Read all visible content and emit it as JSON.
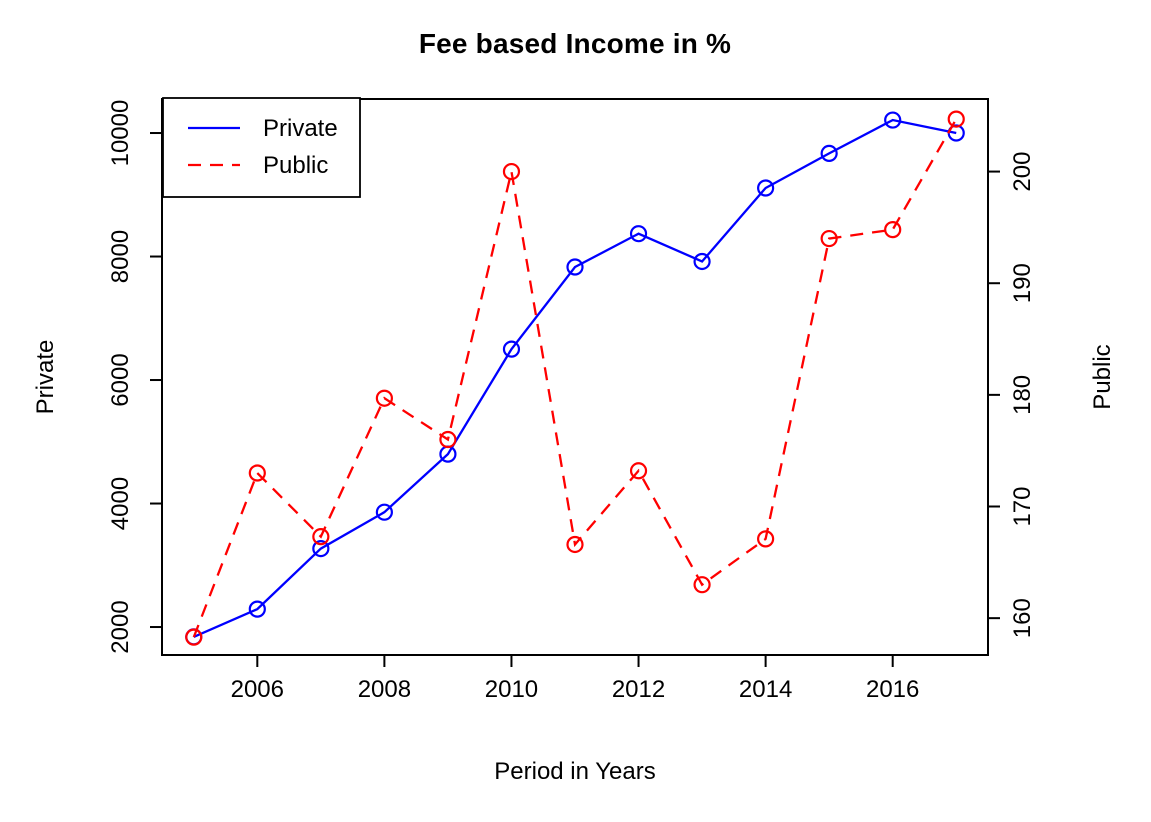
{
  "page": {
    "background": "#ffffff"
  },
  "chart": {
    "title": "Fee based Income in %",
    "xlabel": "Period in Years",
    "ylabel_left": "Private",
    "ylabel_right": "Public"
  },
  "legend": {
    "position": "topleft",
    "items": [
      {
        "label": "Private",
        "color": "#0000ff",
        "style": "solid"
      },
      {
        "label": "Public",
        "color": "#ff0000",
        "style": "dashed"
      }
    ]
  },
  "chart_data": {
    "type": "line",
    "title": "Fee based Income in %",
    "xlabel": "Period in Years",
    "ylabel_left": "Private",
    "ylabel_right": "Public",
    "x": [
      2005,
      2006,
      2007,
      2008,
      2009,
      2010,
      2011,
      2012,
      2013,
      2014,
      2015,
      2016,
      2017
    ],
    "series": [
      {
        "name": "Private",
        "axis": "left",
        "color": "#0000ff",
        "line_style": "solid",
        "marker": "open-circle",
        "values": [
          1840,
          2290,
          3270,
          3860,
          4800,
          6500,
          7830,
          8370,
          7920,
          9110,
          9670,
          10210,
          10000
        ]
      },
      {
        "name": "Public",
        "axis": "right",
        "color": "#ff0000",
        "line_style": "dashed",
        "marker": "open-circle",
        "values": [
          158.3,
          173,
          167.3,
          179.7,
          176,
          200,
          166.6,
          173.2,
          163,
          167.1,
          194,
          194.8,
          204.7
        ]
      }
    ],
    "x_ticks": [
      2006,
      2008,
      2010,
      2012,
      2014,
      2016
    ],
    "y_ticks_left": [
      2000,
      4000,
      6000,
      8000,
      10000
    ],
    "y_ticks_right": [
      160,
      170,
      180,
      190,
      200
    ],
    "xlim": [
      2004.5,
      2017.5
    ],
    "ylim_left": [
      1547,
      10551
    ],
    "ylim_right": [
      156.7,
      206.5
    ],
    "grid": false,
    "legend_position": "topleft",
    "colors": {
      "private": "#0000ff",
      "public": "#ff0000",
      "axis": "#000000",
      "background": "#ffffff"
    }
  }
}
